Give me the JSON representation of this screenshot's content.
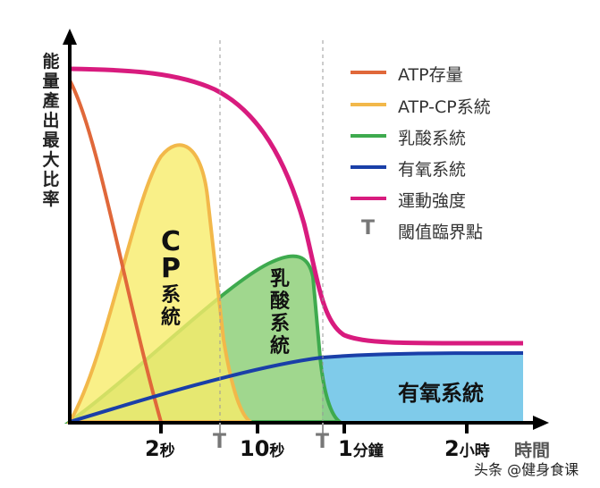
{
  "y_axis_label": "能量產出最大比率",
  "x_axis_label": "時間",
  "x_ticks": [
    {
      "num": "2",
      "unit": "秒"
    },
    {
      "num": "10",
      "unit": "秒"
    },
    {
      "num": "1",
      "unit": "分鐘"
    },
    {
      "num": "2",
      "unit": "小時"
    }
  ],
  "threshold_mark": "T",
  "legend": [
    {
      "label": "ATP存量",
      "color": "#e0683a"
    },
    {
      "label": "ATP-CP系統",
      "color": "#f2b84a"
    },
    {
      "label": "乳酸系統",
      "color": "#3eaa4e"
    },
    {
      "label": "有氧系統",
      "color": "#1a3fa8"
    },
    {
      "label": "運動強度",
      "color": "#d81b7e"
    },
    {
      "label": "閾值臨界點",
      "symbol": "T"
    }
  ],
  "area_labels": {
    "cp_top": "CP",
    "cp_bottom": "系統",
    "lactic": "乳酸系統",
    "aerobic": "有氧系統"
  },
  "watermark": "头条 @健身食课"
}
